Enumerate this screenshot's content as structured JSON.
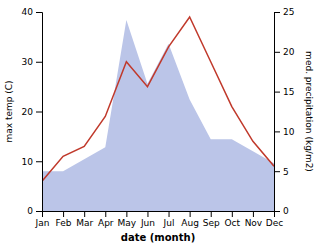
{
  "chart_data": {
    "type": "line",
    "categories": [
      "Jan",
      "Feb",
      "Mar",
      "Apr",
      "May",
      "Jun",
      "Jul",
      "Aug",
      "Sep",
      "Oct",
      "Nov",
      "Dec"
    ],
    "series": [
      {
        "type": "area",
        "axis": "y2",
        "color": "#bbc5e8",
        "values": [
          5,
          5,
          6.5,
          8,
          24,
          16,
          21,
          14,
          9,
          9,
          7.5,
          6
        ]
      },
      {
        "type": "line",
        "color": "#c0392b",
        "values": [
          6,
          11,
          13,
          19,
          30,
          25,
          33,
          39,
          30,
          21,
          14,
          9
        ]
      }
    ],
    "xlabel": "date (month)",
    "ylabel": "max temp (C)",
    "y2label": "med. precipitation (kg/m2)",
    "ylim": [
      0,
      40
    ],
    "yticks": [
      0,
      10,
      20,
      30,
      40
    ],
    "y2lim": [
      0,
      25
    ],
    "y2ticks": [
      0,
      5,
      10,
      15,
      20,
      25
    ],
    "grid": false
  }
}
